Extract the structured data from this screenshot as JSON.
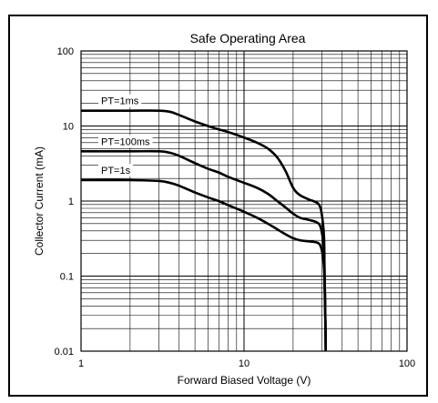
{
  "chart_data": {
    "type": "line",
    "title": "Safe Operating Area",
    "xlabel": "Forward Biased Voltage (V)",
    "ylabel": "Collector Current (mA)",
    "xscale": "log",
    "yscale": "log",
    "xlim": [
      1,
      100
    ],
    "ylim": [
      0.01,
      100
    ],
    "grid": true,
    "x_ticks": [
      "1",
      "10",
      "100"
    ],
    "y_ticks": [
      "0.01",
      "0.1",
      "1",
      "10",
      "100"
    ],
    "series": [
      {
        "name": "PT=1ms",
        "x": [
          1,
          2,
          3,
          3.5,
          4,
          5,
          6,
          7,
          8,
          10,
          12,
          14,
          16,
          18,
          20,
          22,
          25,
          28,
          29.5,
          30.5,
          31,
          31.2,
          31.4,
          31.6,
          31.7
        ],
        "y": [
          16,
          16,
          16,
          15.5,
          14,
          11.5,
          10,
          9,
          8.3,
          7,
          6,
          5,
          3.8,
          2.5,
          1.5,
          1.2,
          1.05,
          0.95,
          0.8,
          0.5,
          0.3,
          0.1,
          0.05,
          0.02,
          0.01
        ]
      },
      {
        "name": "PT=100ms",
        "x": [
          1,
          2,
          3,
          3.5,
          4,
          5,
          6,
          7,
          8,
          10,
          12,
          14,
          16,
          18,
          20,
          22,
          25,
          28,
          29.5,
          30.5,
          31,
          31.2,
          31.4,
          31.6,
          31.7
        ],
        "y": [
          4.6,
          4.6,
          4.6,
          4.4,
          4,
          3.2,
          2.7,
          2.4,
          2.1,
          1.75,
          1.5,
          1.25,
          1.0,
          0.82,
          0.68,
          0.6,
          0.56,
          0.52,
          0.45,
          0.3,
          0.18,
          0.1,
          0.05,
          0.02,
          0.01
        ]
      },
      {
        "name": "PT=1s",
        "x": [
          1,
          2,
          3,
          3.5,
          4,
          5,
          6,
          7,
          8,
          10,
          12,
          14,
          16,
          18,
          20,
          22,
          25,
          28,
          29.5,
          30.5,
          31,
          31.2,
          31.4,
          31.6,
          31.7
        ],
        "y": [
          1.9,
          1.9,
          1.85,
          1.75,
          1.6,
          1.3,
          1.12,
          1.0,
          0.88,
          0.72,
          0.6,
          0.5,
          0.42,
          0.36,
          0.32,
          0.3,
          0.29,
          0.28,
          0.25,
          0.18,
          0.12,
          0.07,
          0.04,
          0.02,
          0.01
        ]
      }
    ],
    "annotations": [
      {
        "text": "PT=1ms",
        "series": 0
      },
      {
        "text": "PT=100ms",
        "series": 1
      },
      {
        "text": "PT=1s",
        "series": 2
      }
    ]
  }
}
